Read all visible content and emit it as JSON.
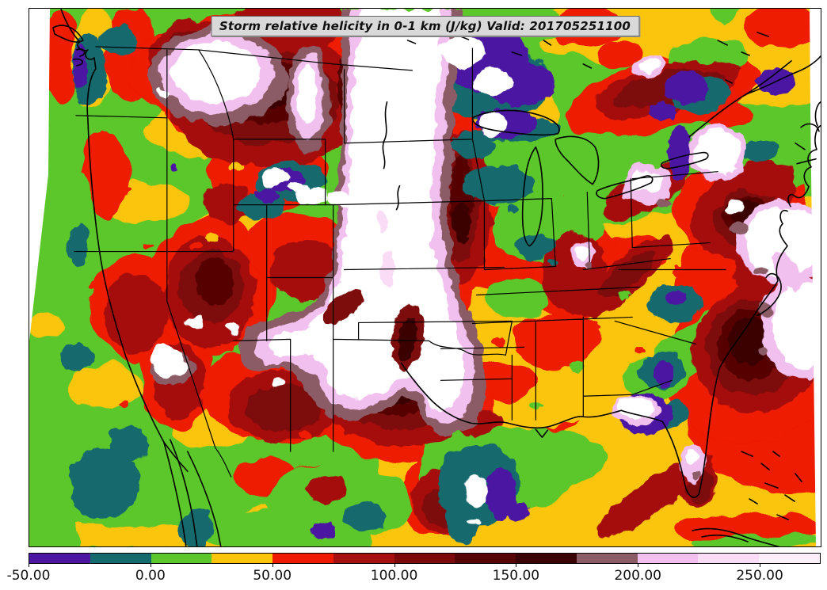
{
  "title": {
    "text": "Storm relative helicity in 0-1 km (J/kg) Valid: 201705251100"
  },
  "map": {
    "field": "Storm relative helicity in 0-1 km",
    "units": "J/kg",
    "valid_time": "201705251100",
    "region": "Continental United States"
  },
  "colorbar": {
    "orientation": "horizontal",
    "vmin": -50,
    "vmax": 275,
    "bin_size": 25,
    "levels": [
      -50,
      -25,
      0,
      25,
      50,
      75,
      100,
      125,
      150,
      175,
      200,
      225,
      250,
      275
    ],
    "colors": [
      "#4c16a2",
      "#156a6e",
      "#5cc72a",
      "#fbc50c",
      "#ee1a00",
      "#a51111",
      "#7d0a0a",
      "#570505",
      "#3a0305",
      "#8c5c66",
      "#f2c0ee",
      "#fadcf6",
      "#fdeffa"
    ],
    "tick_labels": [
      "-50.00",
      "0.00",
      "50.00",
      "100.00",
      "150.00",
      "200.00",
      "250.00"
    ],
    "tick_values": [
      -50,
      0,
      50,
      100,
      150,
      200,
      250
    ]
  }
}
